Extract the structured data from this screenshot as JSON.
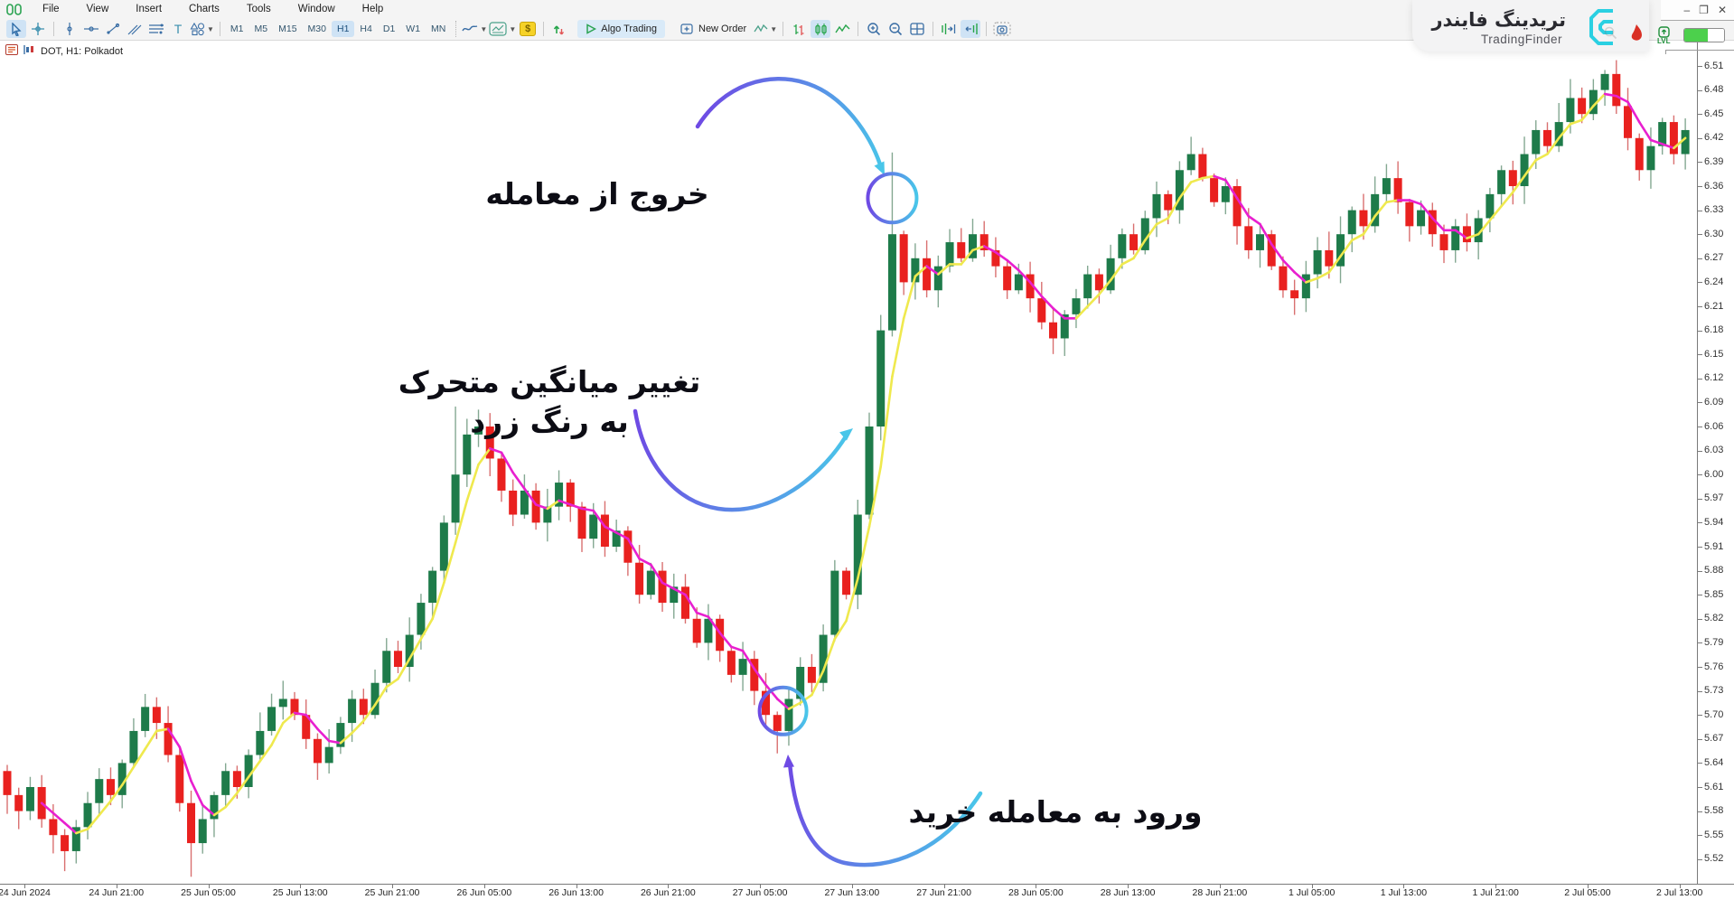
{
  "window": {
    "minimize": "–",
    "restore": "❐",
    "close": "✕"
  },
  "menubar": {
    "items": [
      "File",
      "View",
      "Insert",
      "Charts",
      "Tools",
      "Window",
      "Help"
    ]
  },
  "toolbar": {
    "timeframes": [
      "M1",
      "M5",
      "M15",
      "M30",
      "H1",
      "H4",
      "D1",
      "W1",
      "MN"
    ],
    "selected_timeframe": "H1",
    "algo_trading_label": "Algo Trading",
    "new_order_label": "New Order",
    "text_tool_label": "T",
    "dollar_label": "$"
  },
  "chart": {
    "title": "DOT, H1: Polkadot"
  },
  "watermark": {
    "brand_fa": "تریدینگ فایندر",
    "brand_en": "TradingFinder",
    "lvl_label": "LVL"
  },
  "annotations": {
    "exit": {
      "text": "خروج از معامله"
    },
    "ma": {
      "line1": "تغییر میانگین متحرک",
      "line2": "به رنگ زرد"
    },
    "entry": {
      "text": "ورود به معامله خرید"
    }
  },
  "chart_data": {
    "type": "candlestick",
    "symbol": "DOT",
    "timeframe": "H1",
    "title": "DOT, H1: Polkadot",
    "ylim": [
      5.505,
      6.525
    ],
    "open_first": 5.63,
    "closes": [
      5.6,
      5.58,
      5.61,
      5.57,
      5.55,
      5.53,
      5.56,
      5.59,
      5.62,
      5.6,
      5.64,
      5.68,
      5.71,
      5.69,
      5.65,
      5.59,
      5.54,
      5.57,
      5.6,
      5.63,
      5.61,
      5.65,
      5.68,
      5.71,
      5.72,
      5.7,
      5.67,
      5.64,
      5.66,
      5.69,
      5.72,
      5.7,
      5.74,
      5.78,
      5.76,
      5.8,
      5.84,
      5.88,
      5.94,
      6.0,
      6.05,
      6.06,
      6.02,
      5.98,
      5.95,
      5.98,
      5.94,
      5.96,
      5.99,
      5.96,
      5.92,
      5.95,
      5.91,
      5.93,
      5.89,
      5.85,
      5.88,
      5.84,
      5.86,
      5.82,
      5.79,
      5.82,
      5.78,
      5.75,
      5.77,
      5.73,
      5.7,
      5.68,
      5.72,
      5.76,
      5.74,
      5.8,
      5.88,
      5.85,
      5.95,
      6.06,
      6.18,
      6.3,
      6.24,
      6.27,
      6.23,
      6.26,
      6.29,
      6.27,
      6.3,
      6.28,
      6.26,
      6.23,
      6.25,
      6.22,
      6.19,
      6.17,
      6.2,
      6.22,
      6.25,
      6.23,
      6.27,
      6.3,
      6.28,
      6.32,
      6.35,
      6.33,
      6.38,
      6.4,
      6.37,
      6.34,
      6.36,
      6.31,
      6.28,
      6.3,
      6.26,
      6.23,
      6.22,
      6.25,
      6.28,
      6.26,
      6.3,
      6.33,
      6.31,
      6.35,
      6.37,
      6.34,
      6.31,
      6.33,
      6.3,
      6.28,
      6.31,
      6.29,
      6.32,
      6.35,
      6.38,
      6.36,
      6.4,
      6.43,
      6.41,
      6.44,
      6.47,
      6.45,
      6.48,
      6.5,
      6.46,
      6.42,
      6.38,
      6.41,
      6.44,
      6.4,
      6.43
    ],
    "wick_overrides": {
      "5": {
        "l": 5.505
      },
      "16": {
        "l": 5.498
      },
      "39": {
        "h": 6.085
      },
      "67": {
        "l": 5.652
      },
      "77": {
        "h": 6.402
      },
      "92": {
        "l": 6.148
      },
      "139": {
        "h": 6.505
      }
    },
    "ma": {
      "period": 4,
      "up_color": "#efe94e",
      "down_color": "#e820cf"
    },
    "colors": {
      "up_body": "#1e7b4a",
      "down_body": "#e9211f",
      "up_wick": "#84a892",
      "down_wick": "#d97070"
    },
    "markers": {
      "entry": {
        "index": 67.5,
        "price": 5.705,
        "radius": 26
      },
      "exit": {
        "index": 77.0,
        "price": 6.345,
        "radius": 27
      }
    },
    "price_ticks": [
      "6.51",
      "6.48",
      "6.45",
      "6.42",
      "6.39",
      "6.36",
      "6.33",
      "6.30",
      "6.27",
      "6.24",
      "6.21",
      "6.18",
      "6.15",
      "6.12",
      "6.09",
      "6.06",
      "6.03",
      "6.00",
      "5.97",
      "5.94",
      "5.91",
      "5.88",
      "5.85",
      "5.82",
      "5.79",
      "5.76",
      "5.73",
      "5.70",
      "5.67",
      "5.64",
      "5.61",
      "5.58",
      "5.55",
      "5.52"
    ],
    "time_ticks": [
      "24 Jun 2024",
      "24 Jun 21:00",
      "25 Jun 05:00",
      "25 Jun 13:00",
      "25 Jun 21:00",
      "26 Jun 05:00",
      "26 Jun 13:00",
      "26 Jun 21:00",
      "27 Jun 05:00",
      "27 Jun 13:00",
      "27 Jun 21:00",
      "28 Jun 05:00",
      "28 Jun 13:00",
      "28 Jun 21:00",
      "1 Jul 05:00",
      "1 Jul 13:00",
      "1 Jul 21:00",
      "2 Jul 05:00",
      "2 Jul 13:00"
    ]
  }
}
